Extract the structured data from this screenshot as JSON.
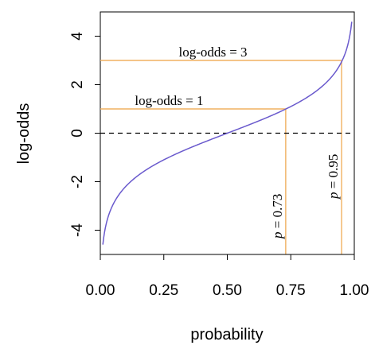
{
  "chart_data": {
    "type": "line",
    "xlabel": "probability",
    "ylabel": "log-odds",
    "xlim": [
      0,
      1
    ],
    "ylim": [
      -5,
      5
    ],
    "xticks": [
      0,
      0.25,
      0.5,
      0.75,
      1
    ],
    "xtick_labels": [
      "0.00",
      "0.25",
      "0.50",
      "0.75",
      "1.00"
    ],
    "yticks": [
      -4,
      -2,
      0,
      2,
      4
    ],
    "ytick_labels": [
      "-4",
      "-2",
      "0",
      "2",
      "4"
    ],
    "grid": false,
    "series": [
      {
        "function": "logit",
        "x": [
          0.01,
          0.02,
          0.05,
          0.1,
          0.2,
          0.3,
          0.4,
          0.5,
          0.6,
          0.7,
          0.8,
          0.9,
          0.95,
          0.98,
          0.99
        ],
        "y": [
          -4.595,
          -3.892,
          -2.944,
          -2.197,
          -1.386,
          -0.847,
          -0.405,
          0,
          0.405,
          0.847,
          1.386,
          2.197,
          2.944,
          3.892,
          4.595
        ],
        "color": "#6a5acd"
      }
    ],
    "reference_line": {
      "y": 0,
      "style": "dashed",
      "color": "#000000"
    },
    "annotations": [
      {
        "log_odds": 1,
        "p": 0.73,
        "h_label": "log-odds = 1",
        "v_label_var": "p",
        "v_label_rest": " = 0.73",
        "color": "#f0b060"
      },
      {
        "log_odds": 3,
        "p": 0.95,
        "h_label": "log-odds = 3",
        "v_label_var": "p",
        "v_label_rest": " = 0.95",
        "color": "#f0b060"
      }
    ]
  }
}
